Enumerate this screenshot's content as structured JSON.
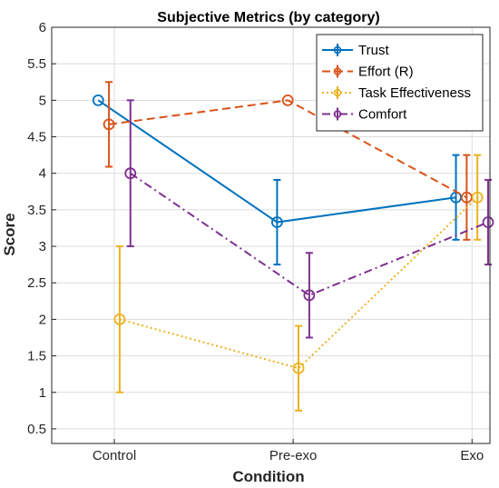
{
  "chart_data": {
    "type": "line",
    "title": "Subjective Metrics (by category)",
    "xlabel": "Condition",
    "ylabel": "Score",
    "categories": [
      "Control",
      "Pre-exo",
      "Exo"
    ],
    "ylim": [
      0.3,
      6
    ],
    "yticks": [
      0.5,
      1,
      1.5,
      2,
      2.5,
      3,
      3.5,
      4,
      4.5,
      5,
      5.5,
      6
    ],
    "ytick_labels": [
      "0.5",
      "1",
      "1.5",
      "2",
      "2.5",
      "3",
      "3.5",
      "4",
      "4.5",
      "5",
      "5.5",
      "6"
    ],
    "grid": true,
    "legend_position": "top-right",
    "series": [
      {
        "name": "Trust",
        "values": [
          5.0,
          3.33,
          3.67
        ],
        "error": [
          0.0,
          0.58,
          0.58
        ],
        "color": "#0072BD",
        "line_style": "solid",
        "offset": -0.09
      },
      {
        "name": "Effort (R)",
        "values": [
          4.67,
          5.0,
          3.67
        ],
        "error": [
          0.58,
          0.0,
          0.58
        ],
        "color": "#D95319",
        "line_style": "dashed",
        "offset": -0.03
      },
      {
        "name": "Task Effectiveness",
        "values": [
          2.0,
          1.33,
          3.67
        ],
        "error": [
          1.0,
          0.58,
          0.58
        ],
        "color": "#EDB120",
        "line_style": "dotted",
        "offset": 0.03
      },
      {
        "name": "Comfort",
        "values": [
          4.0,
          2.33,
          3.33
        ],
        "error": [
          1.0,
          0.58,
          0.58
        ],
        "color": "#7E2F8E",
        "line_style": "dashdot",
        "offset": 0.09
      }
    ]
  }
}
